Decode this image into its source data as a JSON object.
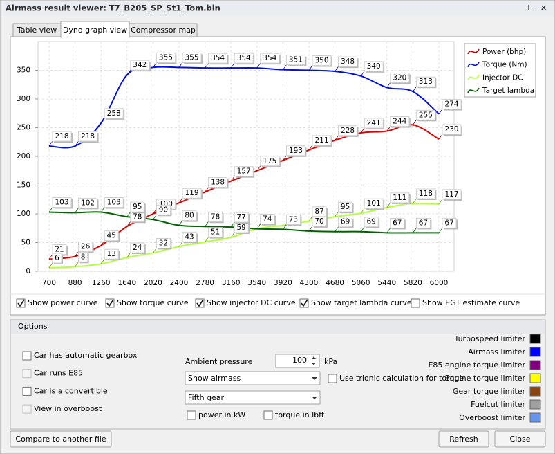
{
  "window_title": "Airmass result viewer: T7_B205_SP_St1_Tom.bin",
  "tabs": [
    "Table view",
    "Dyno graph view",
    "Compressor map"
  ],
  "active_tab": 1,
  "chart_data": {
    "type": "line",
    "categories": [
      "700",
      "880",
      "1260",
      "1640",
      "2020",
      "2400",
      "2780",
      "3160",
      "3540",
      "3920",
      "4300",
      "4680",
      "5060",
      "5440",
      "5820",
      "6000"
    ],
    "ylim": [
      0,
      400
    ],
    "yticks": [
      0,
      50,
      100,
      150,
      200,
      250,
      300,
      350
    ],
    "grid": true,
    "legend": "top-right",
    "series": [
      {
        "name": "Power (bhp)",
        "color": "#e00000",
        "label_color": "#800000",
        "values": [
          21,
          26,
          45,
          78,
          100,
          119,
          138,
          157,
          175,
          193,
          211,
          228,
          241,
          244,
          255,
          230
        ]
      },
      {
        "name": "Torque (Nm)",
        "color": "#0010e0",
        "label_color": "#000080",
        "values": [
          218,
          218,
          258,
          342,
          355,
          355,
          354,
          354,
          354,
          351,
          350,
          348,
          340,
          320,
          313,
          274
        ]
      },
      {
        "name": "Injector DC",
        "color": "#b4ff3c",
        "label_color": "#6a9a00",
        "values": [
          6,
          8,
          13,
          24,
          32,
          43,
          51,
          59,
          74,
          80,
          87,
          95,
          101,
          111,
          118,
          117
        ],
        "value_labels": [
          "6",
          "8",
          "13",
          "24",
          "32",
          "43",
          "51",
          "59",
          "74",
          null,
          "87",
          "95",
          "101",
          "111",
          "118",
          "117"
        ]
      },
      {
        "name": "Target lambda",
        "color": "#006400",
        "label_color": "#006400",
        "values": [
          103,
          102,
          103,
          95,
          90,
          80,
          78,
          77,
          74,
          73,
          70,
          69,
          69,
          67,
          67,
          67
        ]
      }
    ]
  },
  "curve_options": [
    {
      "label": "Show power curve",
      "checked": true
    },
    {
      "label": "Show torque curve",
      "checked": true
    },
    {
      "label": "Show injector DC curve",
      "checked": true
    },
    {
      "label": "Show target lambda curve",
      "checked": true
    },
    {
      "label": "Show EGT estimate curve",
      "checked": false
    }
  ],
  "options": {
    "title": "Options",
    "left_checkboxes": [
      {
        "label": "Car has automatic gearbox",
        "checked": false,
        "enabled": true
      },
      {
        "label": "Car runs E85",
        "checked": false,
        "enabled": false
      },
      {
        "label": "Car is a convertible",
        "checked": false,
        "enabled": true
      },
      {
        "label": "View in overboost",
        "checked": false,
        "enabled": false
      }
    ],
    "ambient_label": "Ambient pressure",
    "ambient_value": 100,
    "ambient_unit": "kPa",
    "dropdowns": [
      "Show airmass",
      "Fifth gear"
    ],
    "unit_checkboxes": [
      {
        "label": "power in kW",
        "checked": false
      },
      {
        "label": "torque in lbft",
        "checked": false
      }
    ],
    "trionic": {
      "label": "Use trionic calculation for torque",
      "checked": false
    }
  },
  "limiters": [
    {
      "label": "Turbospeed limiter",
      "color": "#000000"
    },
    {
      "label": "Airmass limiter",
      "color": "#0000ff"
    },
    {
      "label": "E85 engine torque limiter",
      "color": "#800080"
    },
    {
      "label": "Engine torque limiter",
      "color": "#ffff00"
    },
    {
      "label": "Gear torque limiter",
      "color": "#8b4513"
    },
    {
      "label": "Fuelcut limiter",
      "color": "#a0a0a0"
    },
    {
      "label": "Overboost limiter",
      "color": "#6495ed"
    }
  ],
  "buttons": {
    "compare": "Compare to another file",
    "refresh": "Refresh",
    "close": "Close"
  }
}
